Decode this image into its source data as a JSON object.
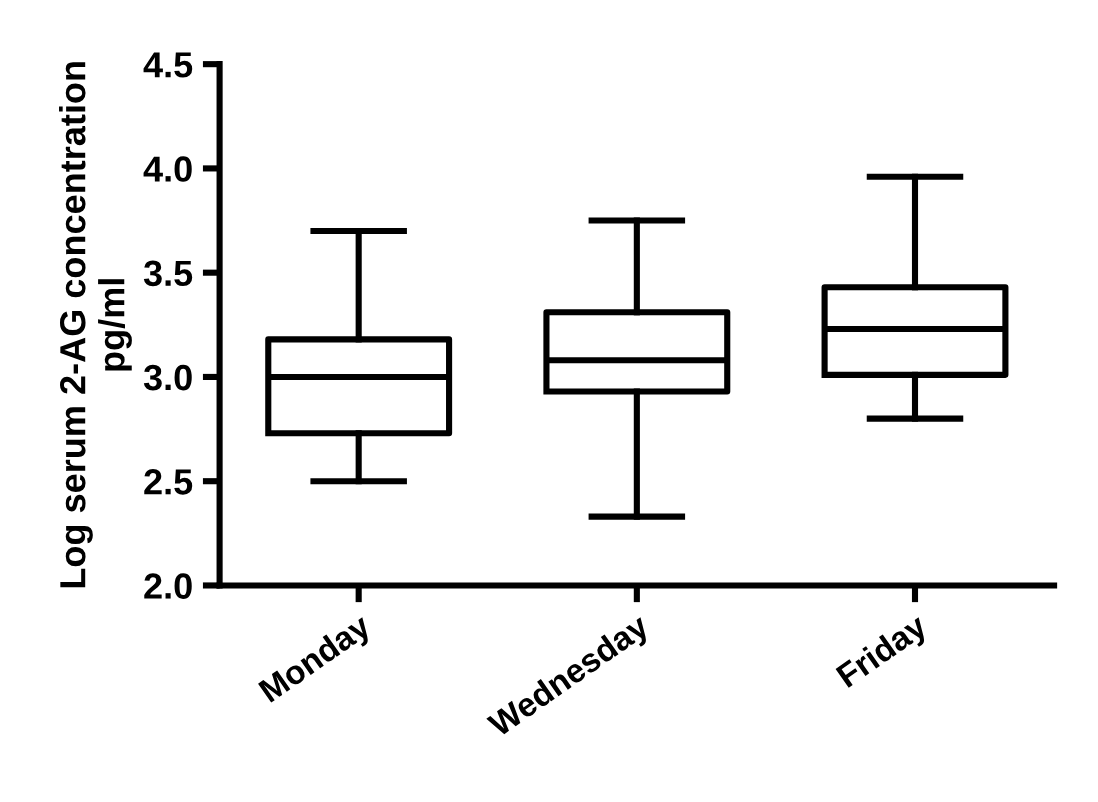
{
  "chart_data": {
    "type": "box",
    "ylabel": "Log serum 2-AG concentration\npg/ml",
    "categories": [
      "Monday",
      "Wednesday",
      "Friday"
    ],
    "boxes": [
      {
        "low": 2.5,
        "q1": 2.73,
        "median": 3.0,
        "q3": 3.18,
        "high": 3.7
      },
      {
        "low": 2.33,
        "q1": 2.93,
        "median": 3.08,
        "q3": 3.31,
        "high": 3.75
      },
      {
        "low": 2.8,
        "q1": 3.01,
        "median": 3.23,
        "q3": 3.43,
        "high": 3.96
      }
    ],
    "color": "#000000",
    "ylim": [
      2.0,
      4.5
    ],
    "yticks": [
      {
        "value": 2.0,
        "label": "2.0"
      },
      {
        "value": 2.5,
        "label": "2.5"
      },
      {
        "value": 3.0,
        "label": "3.0"
      },
      {
        "value": 3.5,
        "label": "3.5"
      },
      {
        "value": 4.0,
        "label": "4.0"
      },
      {
        "value": 4.5,
        "label": "4.5"
      }
    ],
    "grid": false,
    "legend": false
  }
}
